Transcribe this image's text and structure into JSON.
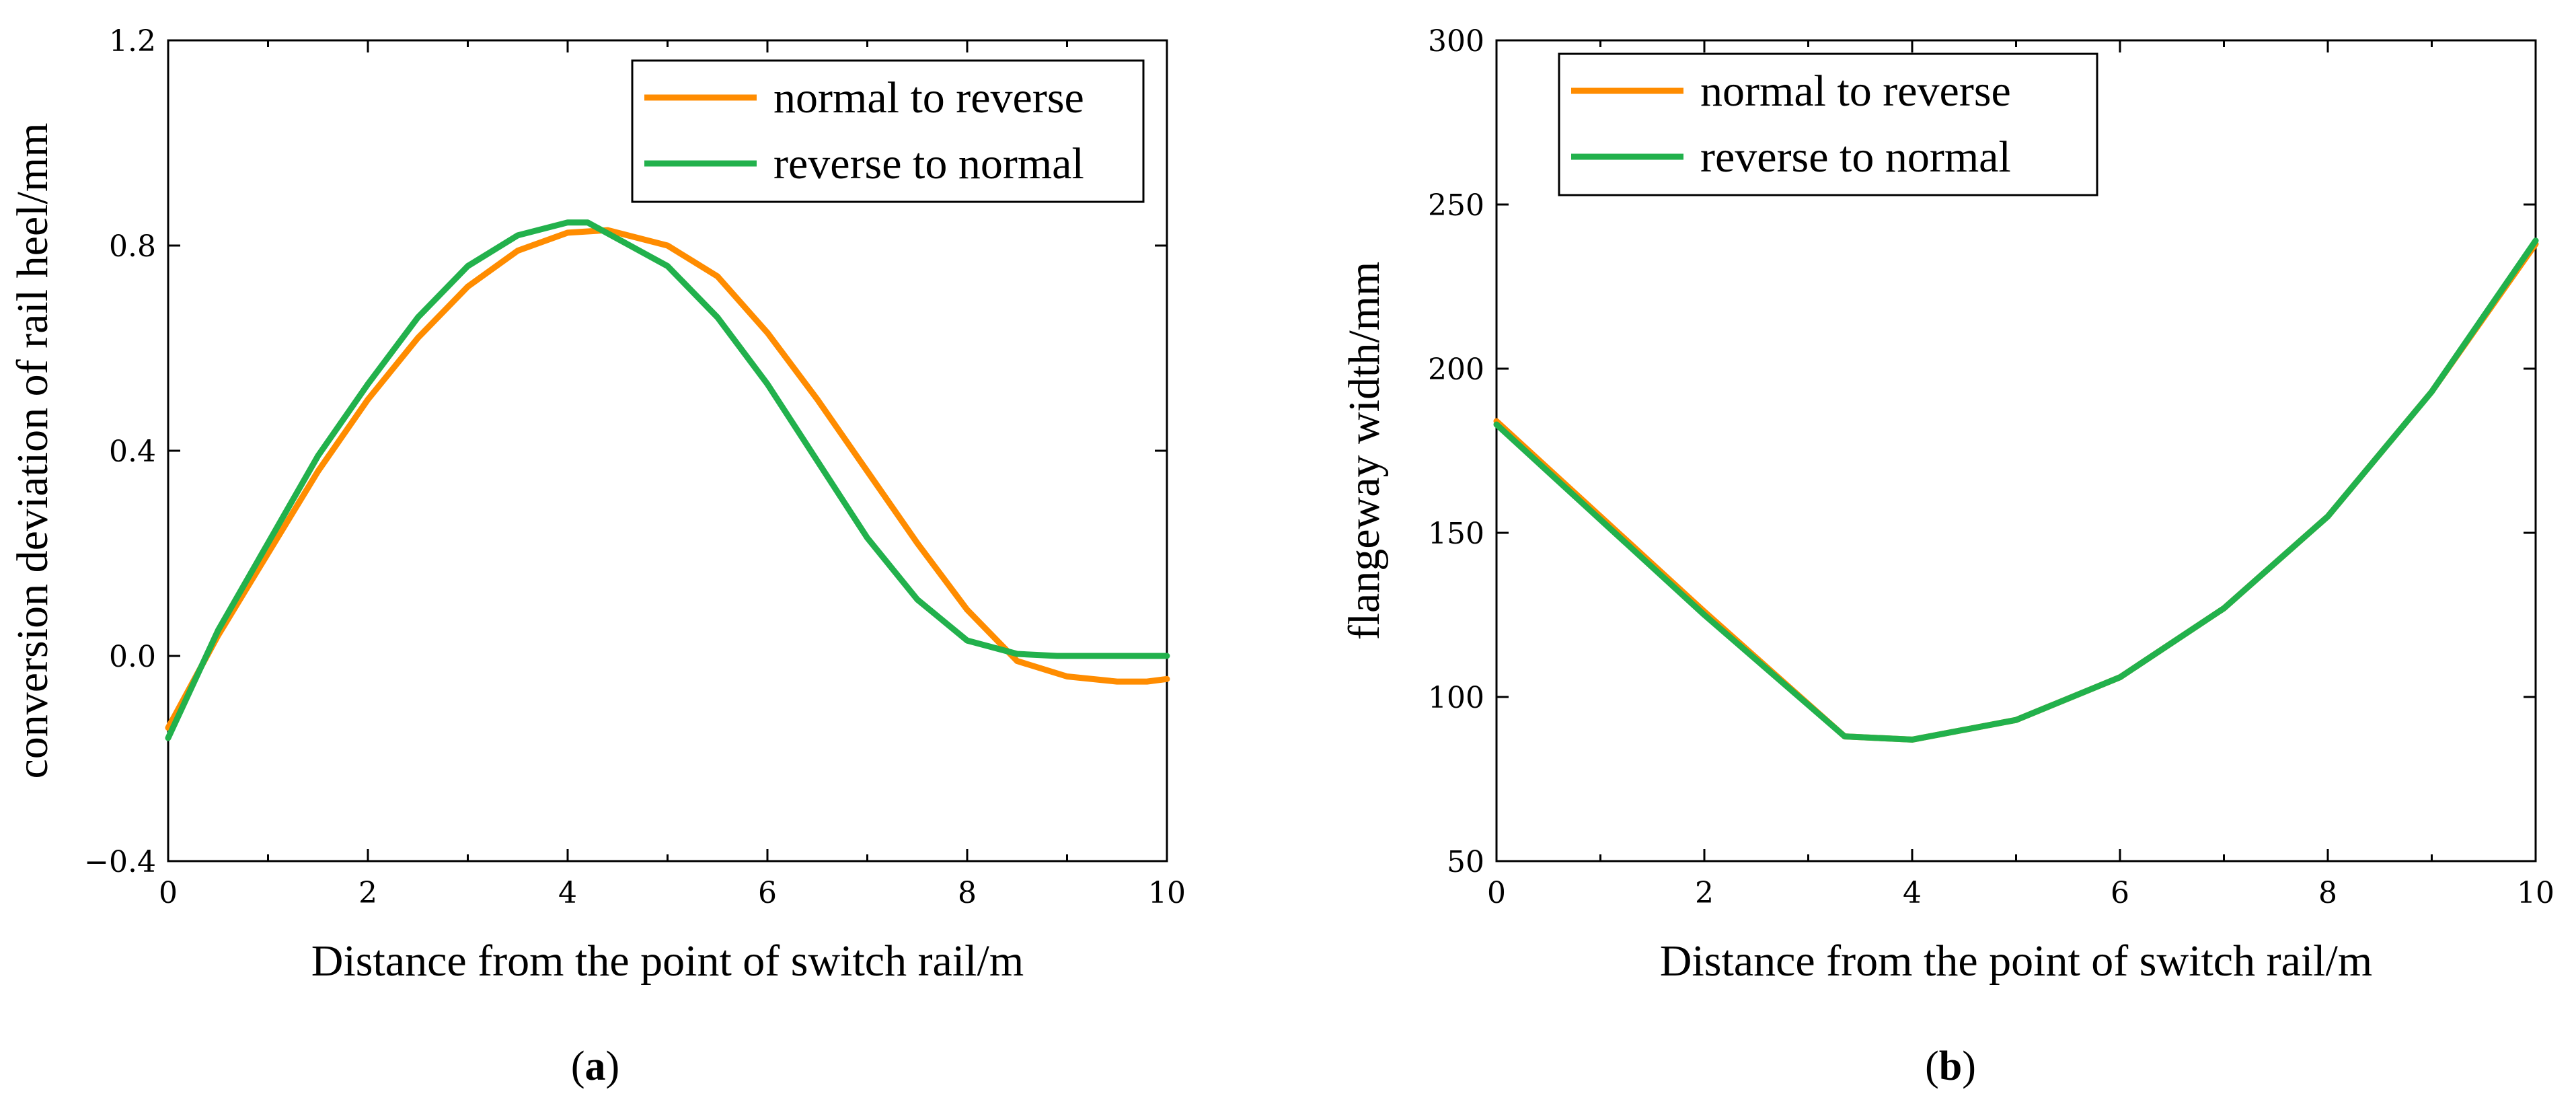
{
  "chart_data": [
    {
      "type": "line",
      "panel_label": "a",
      "xlabel": "Distance from the point of switch rail/m",
      "ylabel": "conversion deviation of rail heel/mm",
      "xlim": [
        0,
        10
      ],
      "ylim": [
        -0.4,
        1.2
      ],
      "xticks": [
        "0",
        "2",
        "4",
        "6",
        "8",
        "10"
      ],
      "yticks": [
        "−0.4",
        "0.0",
        "0.4",
        "0.8",
        "1.2"
      ],
      "legend_position": "top-right",
      "series": [
        {
          "name": "normal to reverse",
          "color": "#ff8c00",
          "x": [
            0,
            0.5,
            1,
            1.5,
            2,
            2.5,
            3,
            3.5,
            4,
            4.4,
            5,
            5.5,
            6,
            6.5,
            7,
            7.5,
            8,
            8.5,
            9,
            9.5,
            9.8,
            10
          ],
          "y": [
            -0.14,
            0.04,
            0.2,
            0.36,
            0.5,
            0.62,
            0.72,
            0.79,
            0.825,
            0.83,
            0.8,
            0.74,
            0.63,
            0.5,
            0.36,
            0.22,
            0.09,
            -0.01,
            -0.04,
            -0.05,
            -0.05,
            -0.045
          ]
        },
        {
          "name": "reverse to normal",
          "color": "#22b14c",
          "x": [
            0,
            0.5,
            1,
            1.5,
            2,
            2.5,
            3,
            3.5,
            4,
            4.2,
            5,
            5.5,
            6,
            6.5,
            7,
            7.5,
            8,
            8.5,
            8.9,
            9.3,
            10
          ],
          "y": [
            -0.16,
            0.05,
            0.22,
            0.39,
            0.53,
            0.66,
            0.76,
            0.82,
            0.845,
            0.845,
            0.76,
            0.66,
            0.53,
            0.38,
            0.23,
            0.11,
            0.03,
            0.004,
            0.0,
            0.0,
            0.0
          ]
        }
      ]
    },
    {
      "type": "line",
      "panel_label": "b",
      "xlabel": "Distance from the point of switch rail/m",
      "ylabel": "flangeway width/mm",
      "xlim": [
        0,
        10
      ],
      "ylim": [
        50,
        300
      ],
      "xticks": [
        "0",
        "2",
        "4",
        "6",
        "8",
        "10"
      ],
      "yticks": [
        "50",
        "100",
        "150",
        "200",
        "250",
        "300"
      ],
      "legend_position": "top-left",
      "series": [
        {
          "name": "normal to reverse",
          "color": "#ff8c00",
          "x": [
            0,
            1,
            2,
            3.35,
            4,
            5,
            6,
            7,
            8,
            9,
            10
          ],
          "y": [
            184,
            155,
            126,
            88,
            87,
            93,
            106,
            127,
            155,
            193,
            238
          ]
        },
        {
          "name": "reverse to normal",
          "color": "#22b14c",
          "x": [
            0,
            1,
            2,
            3.35,
            4,
            5,
            6,
            7,
            8,
            9,
            10
          ],
          "y": [
            183,
            154,
            125,
            88,
            87,
            93,
            106,
            127,
            155,
            193,
            239
          ]
        }
      ]
    }
  ]
}
